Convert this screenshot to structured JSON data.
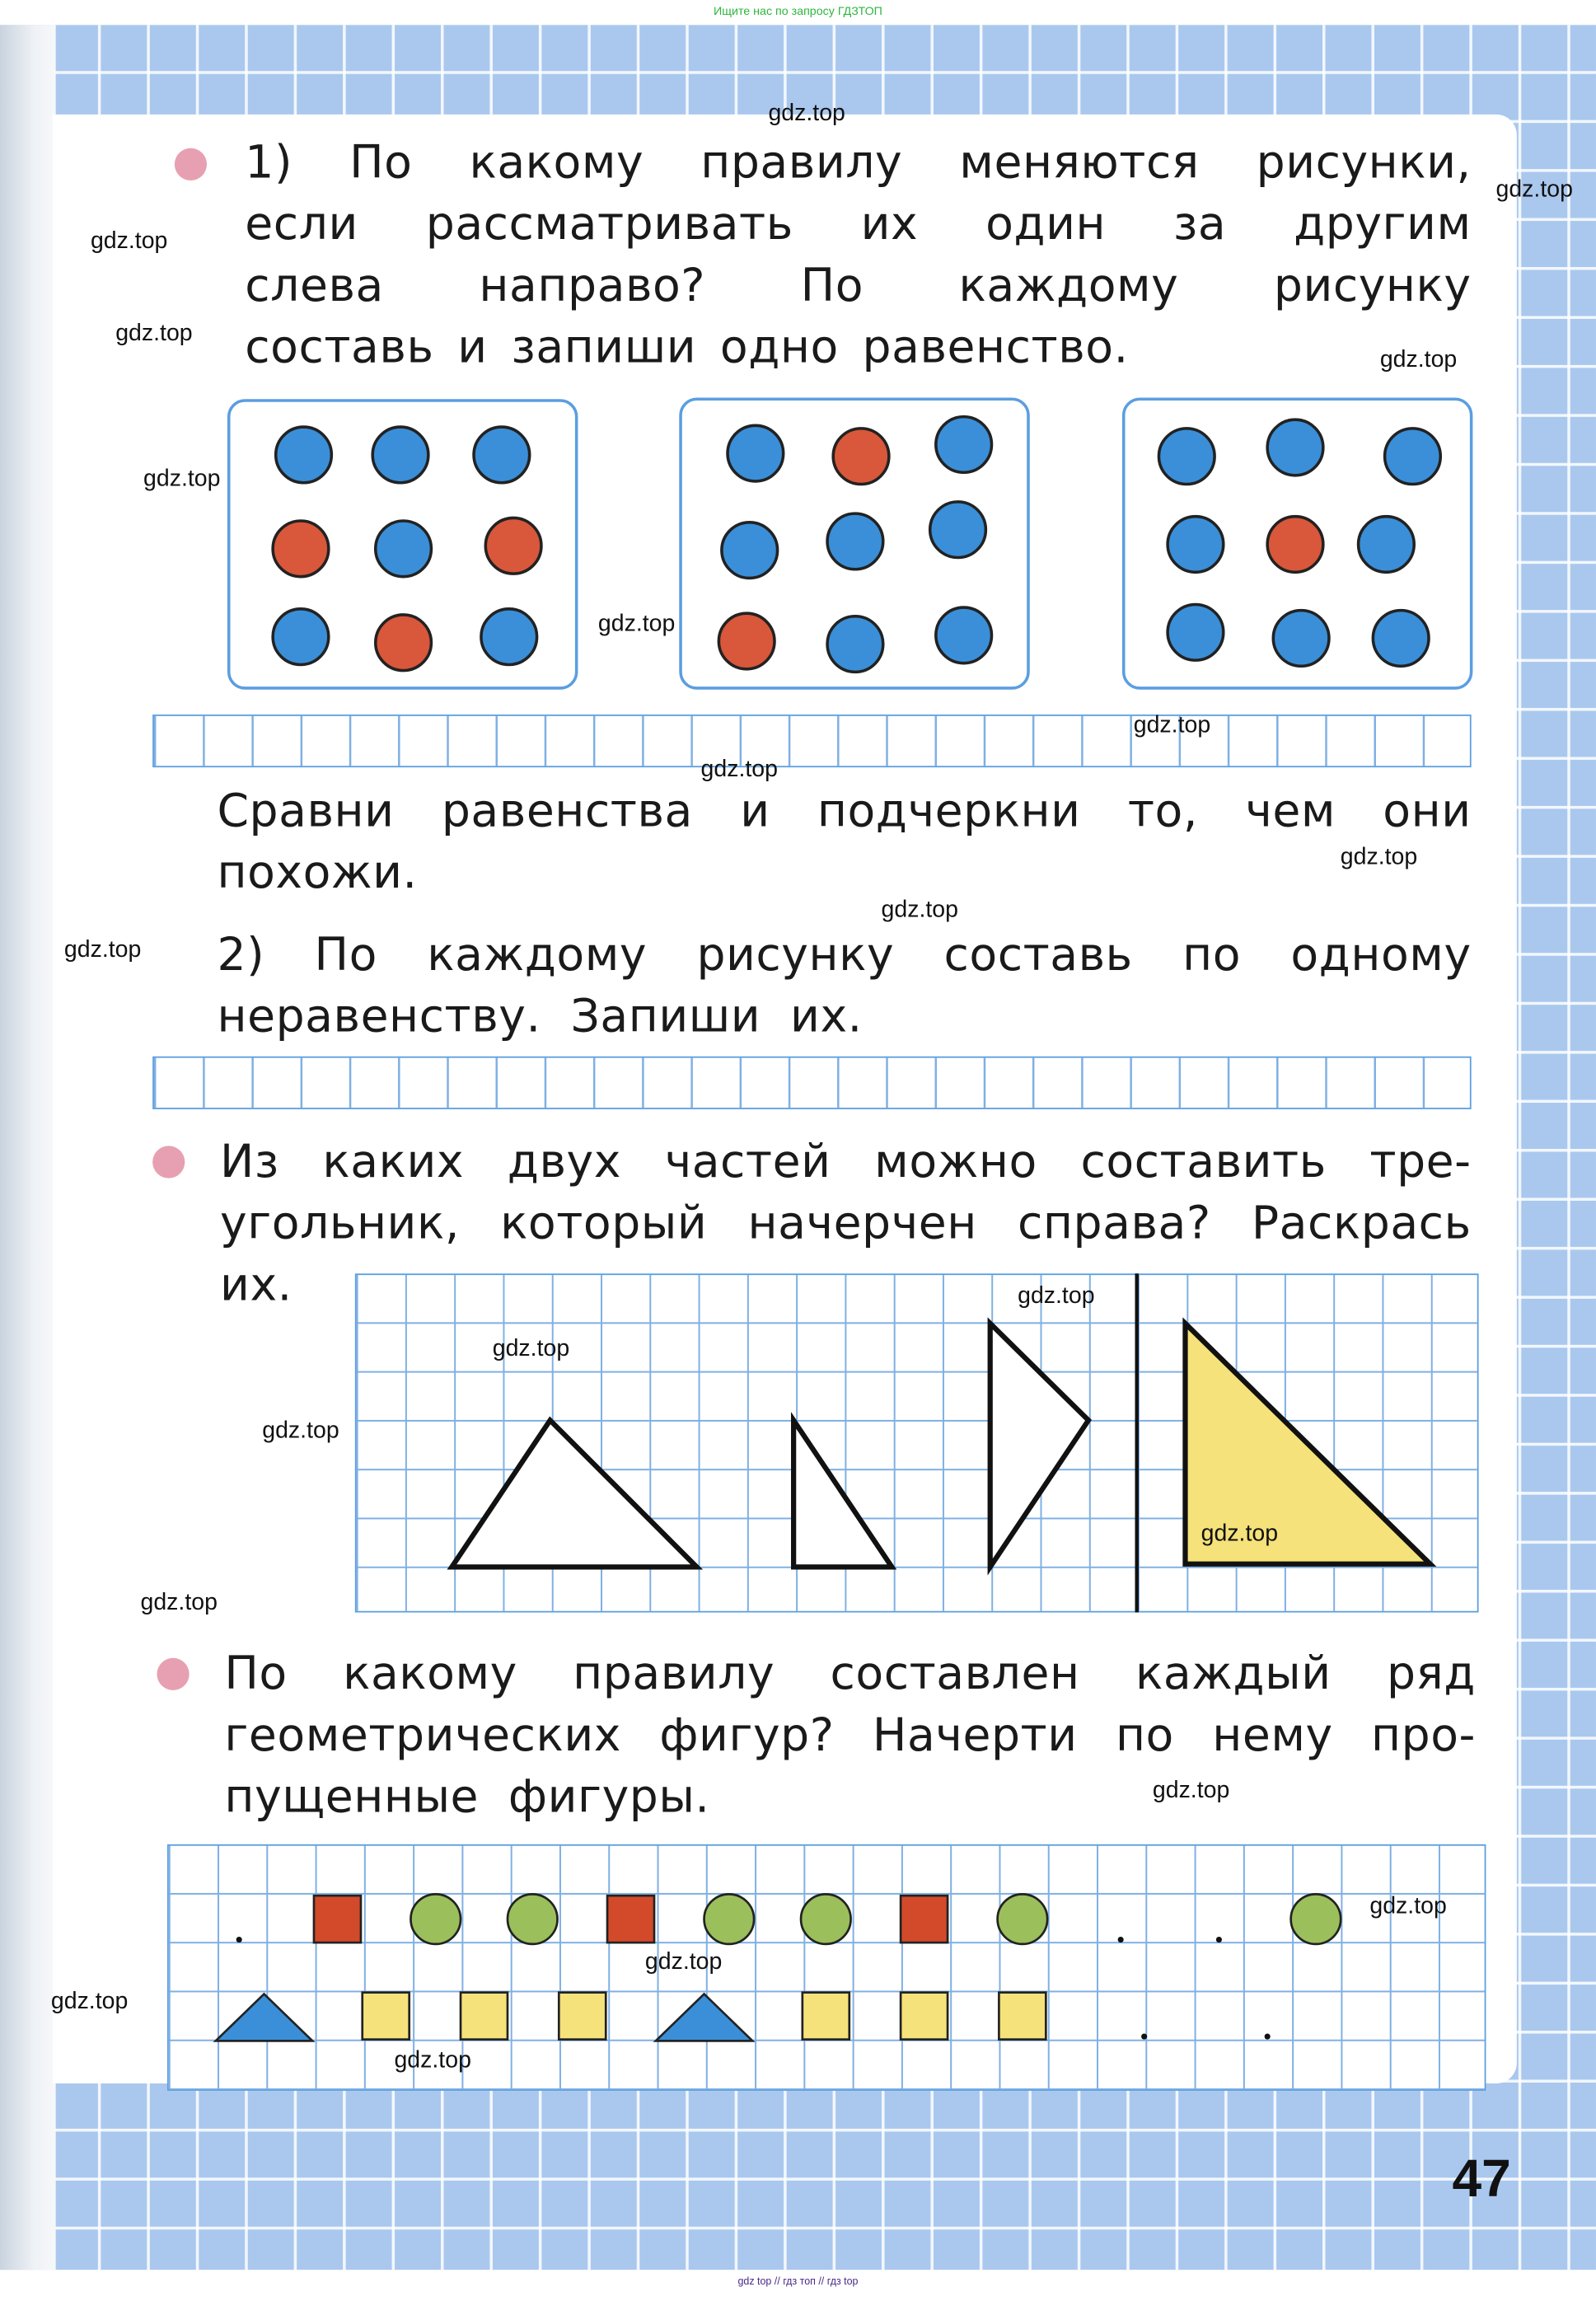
{
  "header_note": "Ищите нас по запросу ГДЗТОП",
  "footer_note": "gdz top  //  гдз топ  //  гдз top",
  "page_number": "47",
  "colors": {
    "blue": "#3a8fd8",
    "red": "#d9573a",
    "green": "#9bbf5a",
    "yellow": "#f5e27a",
    "square_red": "#d24a2a",
    "triangle_blue": "#3a8fd8",
    "bullet": "#e7a0b2"
  },
  "task1": {
    "lines": [
      "1) По какому правилу меняются рисунки,",
      "если рассматривать их один за другим",
      "слева направо? По каждому рисунку",
      "составь и запиши одно равенство."
    ],
    "boxes": [
      [
        "blue",
        "blue",
        "blue",
        "red",
        "blue",
        "red",
        "blue",
        "red",
        "blue"
      ],
      [
        "blue",
        "red",
        "blue",
        "blue",
        "blue",
        "blue",
        "red",
        "blue",
        "blue"
      ],
      [
        "blue",
        "blue",
        "blue",
        "blue",
        "red",
        "blue",
        "blue",
        "blue",
        "blue"
      ]
    ],
    "compare_lines": [
      "Сравни равенства и подчеркни то, чем они",
      "похожи."
    ],
    "part2_lines": [
      "2) По каждому рисунку составь по одному",
      "неравенству. Запиши их."
    ]
  },
  "task2": {
    "lines": [
      "Из каких двух частей можно составить тре-",
      "угольник, который начерчен справа? Раскрась",
      "их."
    ]
  },
  "task3": {
    "lines": [
      "По какому правилу составлен каждый ряд",
      "геометрических фигур? Начерти по нему про-",
      "пущенные фигуры."
    ],
    "row1": [
      "dot",
      "red-square",
      "green-circle",
      "green-circle",
      "red-square",
      "green-circle",
      "green-circle",
      "red-square",
      "green-circle",
      "dot",
      "dot",
      "green-circle"
    ],
    "row2": [
      "blue-triangle",
      "yellow-square",
      "yellow-square",
      "yellow-square",
      "blue-triangle",
      "yellow-square",
      "yellow-square",
      "yellow-square",
      "dot",
      "dot"
    ]
  },
  "watermarks": [
    "gdz.top",
    "gdz.top",
    "gdz.top",
    "gdz.top",
    "gdz.top",
    "gdz.top",
    "gdz.top",
    "gdz.top",
    "gdz.top",
    "gdz.top",
    "gdz.top",
    "gdz.top",
    "gdz.top",
    "gdz.top",
    "gdz.top",
    "gdz.top",
    "gdz.top",
    "gdz.top",
    "gdz.top",
    "gdz.top",
    "gdz.top",
    "gdz.top"
  ]
}
